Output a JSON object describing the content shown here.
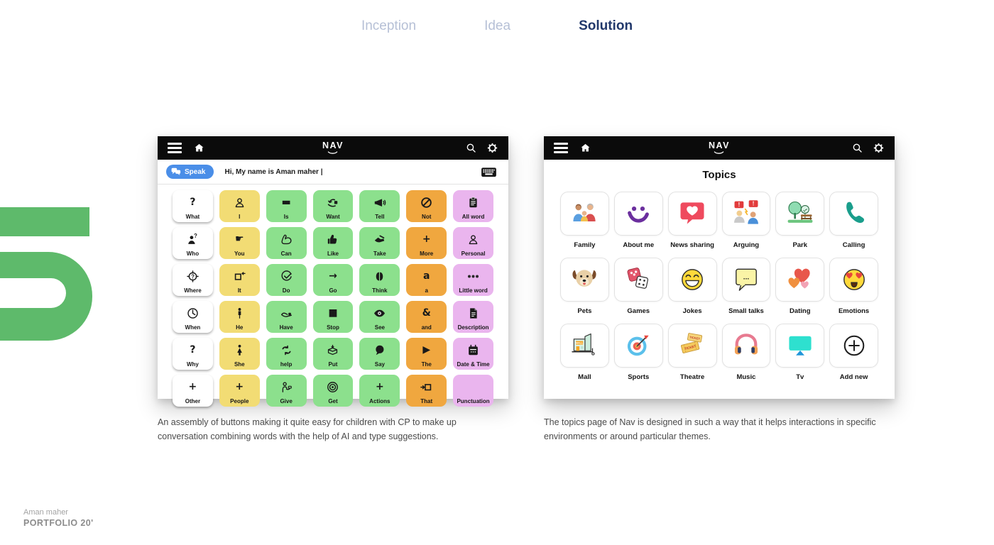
{
  "tabs": [
    {
      "label": "Inception",
      "active": false
    },
    {
      "label": "Idea",
      "active": false
    },
    {
      "label": "Solution",
      "active": true
    }
  ],
  "app": {
    "logo": "NAV"
  },
  "left_app": {
    "speak_label": "Speak",
    "message_text": "Hi, My name is Aman maher |",
    "grid": [
      [
        {
          "label": "What",
          "color": "white",
          "icon": "question"
        },
        {
          "label": "I",
          "color": "yellow",
          "icon": "person"
        },
        {
          "label": "Is",
          "color": "green",
          "icon": "dash"
        },
        {
          "label": "Want",
          "color": "green",
          "icon": "want"
        },
        {
          "label": "Tell",
          "color": "green",
          "icon": "megaphone"
        },
        {
          "label": "Not",
          "color": "orange",
          "icon": "not"
        },
        {
          "label": "All word",
          "color": "purple",
          "icon": "clipboard"
        }
      ],
      [
        {
          "label": "Who",
          "color": "white",
          "icon": "who"
        },
        {
          "label": "You",
          "color": "yellow",
          "icon": "point"
        },
        {
          "label": "Can",
          "color": "green",
          "icon": "muscle"
        },
        {
          "label": "Like",
          "color": "green",
          "icon": "thumb"
        },
        {
          "label": "Take",
          "color": "green",
          "icon": "take"
        },
        {
          "label": "More",
          "color": "orange",
          "icon": "plus"
        },
        {
          "label": "Personal",
          "color": "purple",
          "icon": "person"
        }
      ],
      [
        {
          "label": "Where",
          "color": "white",
          "icon": "where"
        },
        {
          "label": "It",
          "color": "yellow",
          "icon": "square-out"
        },
        {
          "label": "Do",
          "color": "green",
          "icon": "check"
        },
        {
          "label": "Go",
          "color": "green",
          "icon": "arrow"
        },
        {
          "label": "Think",
          "color": "green",
          "icon": "brain"
        },
        {
          "label": "a",
          "color": "orange",
          "icon": "letter-a"
        },
        {
          "label": "Little word",
          "color": "purple",
          "icon": "dots"
        }
      ],
      [
        {
          "label": "When",
          "color": "white",
          "icon": "clock"
        },
        {
          "label": "He",
          "color": "yellow",
          "icon": "male"
        },
        {
          "label": "Have",
          "color": "green",
          "icon": "hold"
        },
        {
          "label": "Stop",
          "color": "green",
          "icon": "stop"
        },
        {
          "label": "See",
          "color": "green",
          "icon": "eye"
        },
        {
          "label": "and",
          "color": "orange",
          "icon": "ampersand"
        },
        {
          "label": "Description",
          "color": "purple",
          "icon": "document"
        }
      ],
      [
        {
          "label": "Why",
          "color": "white",
          "icon": "question"
        },
        {
          "label": "She",
          "color": "yellow",
          "icon": "female"
        },
        {
          "label": "help",
          "color": "green",
          "icon": "help"
        },
        {
          "label": "Put",
          "color": "green",
          "icon": "box"
        },
        {
          "label": "Say",
          "color": "green",
          "icon": "bubble"
        },
        {
          "label": "The",
          "color": "orange",
          "icon": "play"
        },
        {
          "label": "Date & Time",
          "color": "purple",
          "icon": "calendar"
        }
      ],
      [
        {
          "label": "Other",
          "color": "white",
          "icon": "plus"
        },
        {
          "label": "People",
          "color": "yellow",
          "icon": "plus"
        },
        {
          "label": "Give",
          "color": "green",
          "icon": "give"
        },
        {
          "label": "Get",
          "color": "green",
          "icon": "target"
        },
        {
          "label": "Actions",
          "color": "green",
          "icon": "plus"
        },
        {
          "label": "That",
          "color": "orange",
          "icon": "square-in"
        },
        {
          "label": "Punctuation",
          "color": "purple",
          "icon": "none"
        }
      ]
    ]
  },
  "right_app": {
    "title": "Topics",
    "topics": [
      {
        "label": "Family",
        "icon": "family"
      },
      {
        "label": "About me",
        "icon": "aboutme"
      },
      {
        "label": "News sharing",
        "icon": "news"
      },
      {
        "label": "Arguing",
        "icon": "arguing"
      },
      {
        "label": "Park",
        "icon": "park"
      },
      {
        "label": "Calling",
        "icon": "calling"
      },
      {
        "label": "Pets",
        "icon": "pets"
      },
      {
        "label": "Games",
        "icon": "games"
      },
      {
        "label": "Jokes",
        "icon": "jokes"
      },
      {
        "label": "Small talks",
        "icon": "smalltalks"
      },
      {
        "label": "Dating",
        "icon": "dating"
      },
      {
        "label": "Emotions",
        "icon": "emotions"
      },
      {
        "label": "Mall",
        "icon": "mall"
      },
      {
        "label": "Sports",
        "icon": "sports"
      },
      {
        "label": "Theatre",
        "icon": "theatre"
      },
      {
        "label": "Music",
        "icon": "music"
      },
      {
        "label": "Tv",
        "icon": "tv"
      },
      {
        "label": "Add new",
        "icon": "addnew"
      }
    ]
  },
  "captions": {
    "left": "An assembly of buttons making it quite easy for children with CP to make up conversation combining words with the help of AI and type suggestions.",
    "right": "The topics page of Nav is designed in such a way that it helps interactions in specific environments or around particular themes."
  },
  "footer": {
    "name": "Aman maher",
    "portfolio": "PORTFOLIO 20'"
  },
  "colors": {
    "tab_active": "#21386b",
    "tab_inactive": "#b6c0d6",
    "header_black": "#0b0b0b",
    "speak_blue": "#4a8ee8",
    "cell_yellow": "#f2dc74",
    "cell_green": "#8ce08d",
    "cell_orange": "#f0a73f",
    "cell_purple": "#eab5ee",
    "accent_green_shape": "#5eba6b"
  }
}
